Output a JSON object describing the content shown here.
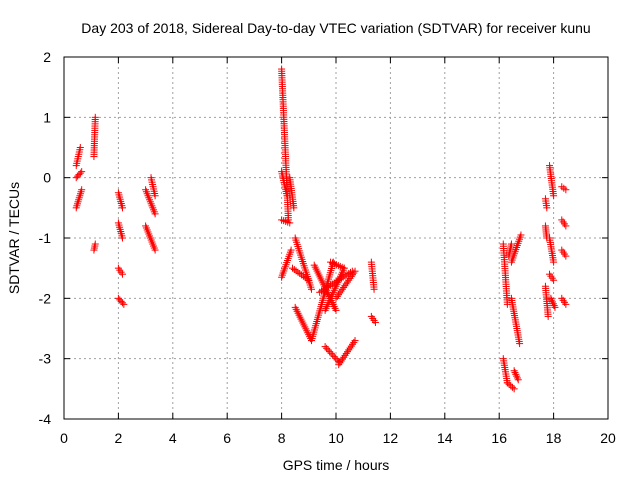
{
  "chart_data": {
    "type": "scatter",
    "title": "Day 203 of 2018, Sidereal Day-to-day VTEC variation (SDTVAR) for receiver kunu",
    "xlabel": "GPS time / hours",
    "ylabel": "SDTVAR / TECUs",
    "xlim": [
      0,
      20
    ],
    "ylim": [
      -4,
      2
    ],
    "xticks": [
      0,
      2,
      4,
      6,
      8,
      10,
      12,
      14,
      16,
      18,
      20
    ],
    "yticks": [
      -4,
      -3,
      -2,
      -1,
      0,
      1,
      2
    ],
    "grid": true,
    "marker": "+",
    "color": "#ff0000",
    "segments": [
      {
        "x": [
          0.45,
          0.6
        ],
        "y": [
          0.2,
          0.5
        ]
      },
      {
        "x": [
          0.45,
          0.65
        ],
        "y": [
          0.0,
          0.1
        ]
      },
      {
        "x": [
          0.45,
          0.65
        ],
        "y": [
          -0.5,
          -0.2
        ]
      },
      {
        "x": [
          1.1,
          1.15
        ],
        "y": [
          0.35,
          1.0
        ]
      },
      {
        "x": [
          1.1,
          1.15
        ],
        "y": [
          -1.2,
          -1.1
        ]
      },
      {
        "x": [
          2.0,
          2.15
        ],
        "y": [
          -0.25,
          -0.5
        ]
      },
      {
        "x": [
          2.0,
          2.15
        ],
        "y": [
          -0.75,
          -1.0
        ]
      },
      {
        "x": [
          2.0,
          2.15
        ],
        "y": [
          -1.5,
          -1.6
        ]
      },
      {
        "x": [
          2.0,
          2.2
        ],
        "y": [
          -2.0,
          -2.1
        ]
      },
      {
        "x": [
          3.0,
          3.35
        ],
        "y": [
          -0.2,
          -0.6
        ]
      },
      {
        "x": [
          3.0,
          3.35
        ],
        "y": [
          -0.8,
          -1.2
        ]
      },
      {
        "x": [
          3.2,
          3.35
        ],
        "y": [
          0.0,
          -0.3
        ]
      },
      {
        "x": [
          8.0,
          8.25
        ],
        "y": [
          1.8,
          -0.7
        ]
      },
      {
        "x": [
          8.0,
          8.2
        ],
        "y": [
          0.1,
          -0.3
        ]
      },
      {
        "x": [
          8.0,
          8.3
        ],
        "y": [
          -0.7,
          -0.75
        ]
      },
      {
        "x": [
          8.0,
          8.35
        ],
        "y": [
          -1.65,
          -1.2
        ]
      },
      {
        "x": [
          8.3,
          8.45
        ],
        "y": [
          0.0,
          -0.5
        ]
      },
      {
        "x": [
          8.5,
          9.1
        ],
        "y": [
          -1.0,
          -1.85
        ]
      },
      {
        "x": [
          8.4,
          9.0
        ],
        "y": [
          -1.5,
          -1.7
        ]
      },
      {
        "x": [
          8.5,
          9.1
        ],
        "y": [
          -2.15,
          -2.7
        ]
      },
      {
        "x": [
          9.1,
          9.9
        ],
        "y": [
          -2.7,
          -1.4
        ]
      },
      {
        "x": [
          9.2,
          10.0
        ],
        "y": [
          -1.45,
          -2.2
        ]
      },
      {
        "x": [
          9.6,
          10.3
        ],
        "y": [
          -2.2,
          -1.5
        ]
      },
      {
        "x": [
          9.4,
          10.6
        ],
        "y": [
          -1.9,
          -1.55
        ]
      },
      {
        "x": [
          9.8,
          10.3
        ],
        "y": [
          -1.4,
          -1.5
        ]
      },
      {
        "x": [
          9.6,
          10.1
        ],
        "y": [
          -2.8,
          -3.05
        ]
      },
      {
        "x": [
          10.1,
          10.7
        ],
        "y": [
          -3.1,
          -2.7
        ]
      },
      {
        "x": [
          10.0,
          10.7
        ],
        "y": [
          -2.0,
          -1.55
        ]
      },
      {
        "x": [
          11.3,
          11.4
        ],
        "y": [
          -1.4,
          -1.85
        ]
      },
      {
        "x": [
          11.3,
          11.45
        ],
        "y": [
          -2.3,
          -2.4
        ]
      },
      {
        "x": [
          16.15,
          16.3
        ],
        "y": [
          -1.1,
          -2.1
        ]
      },
      {
        "x": [
          16.15,
          16.3
        ],
        "y": [
          -3.0,
          -3.4
        ]
      },
      {
        "x": [
          16.3,
          16.55
        ],
        "y": [
          -3.4,
          -3.5
        ]
      },
      {
        "x": [
          16.35,
          16.45
        ],
        "y": [
          -1.3,
          -1.1
        ]
      },
      {
        "x": [
          16.45,
          16.75
        ],
        "y": [
          -2.0,
          -2.75
        ]
      },
      {
        "x": [
          16.45,
          16.8
        ],
        "y": [
          -1.4,
          -0.95
        ]
      },
      {
        "x": [
          16.55,
          16.7
        ],
        "y": [
          -3.2,
          -3.35
        ]
      },
      {
        "x": [
          17.7,
          17.75
        ],
        "y": [
          -0.8,
          -1.0
        ]
      },
      {
        "x": [
          17.7,
          17.75
        ],
        "y": [
          -0.35,
          -0.5
        ]
      },
      {
        "x": [
          17.7,
          17.8
        ],
        "y": [
          -1.8,
          -2.3
        ]
      },
      {
        "x": [
          17.85,
          18.0
        ],
        "y": [
          0.2,
          -0.3
        ]
      },
      {
        "x": [
          17.85,
          18.0
        ],
        "y": [
          -1.0,
          -1.4
        ]
      },
      {
        "x": [
          17.85,
          18.0
        ],
        "y": [
          -1.6,
          -1.7
        ]
      },
      {
        "x": [
          17.9,
          18.05
        ],
        "y": [
          -2.0,
          -2.15
        ]
      },
      {
        "x": [
          18.3,
          18.45
        ],
        "y": [
          -0.15,
          -0.2
        ]
      },
      {
        "x": [
          18.3,
          18.45
        ],
        "y": [
          -0.7,
          -0.8
        ]
      },
      {
        "x": [
          18.3,
          18.45
        ],
        "y": [
          -1.2,
          -1.3
        ]
      },
      {
        "x": [
          18.3,
          18.45
        ],
        "y": [
          -2.0,
          -2.1
        ]
      }
    ]
  }
}
